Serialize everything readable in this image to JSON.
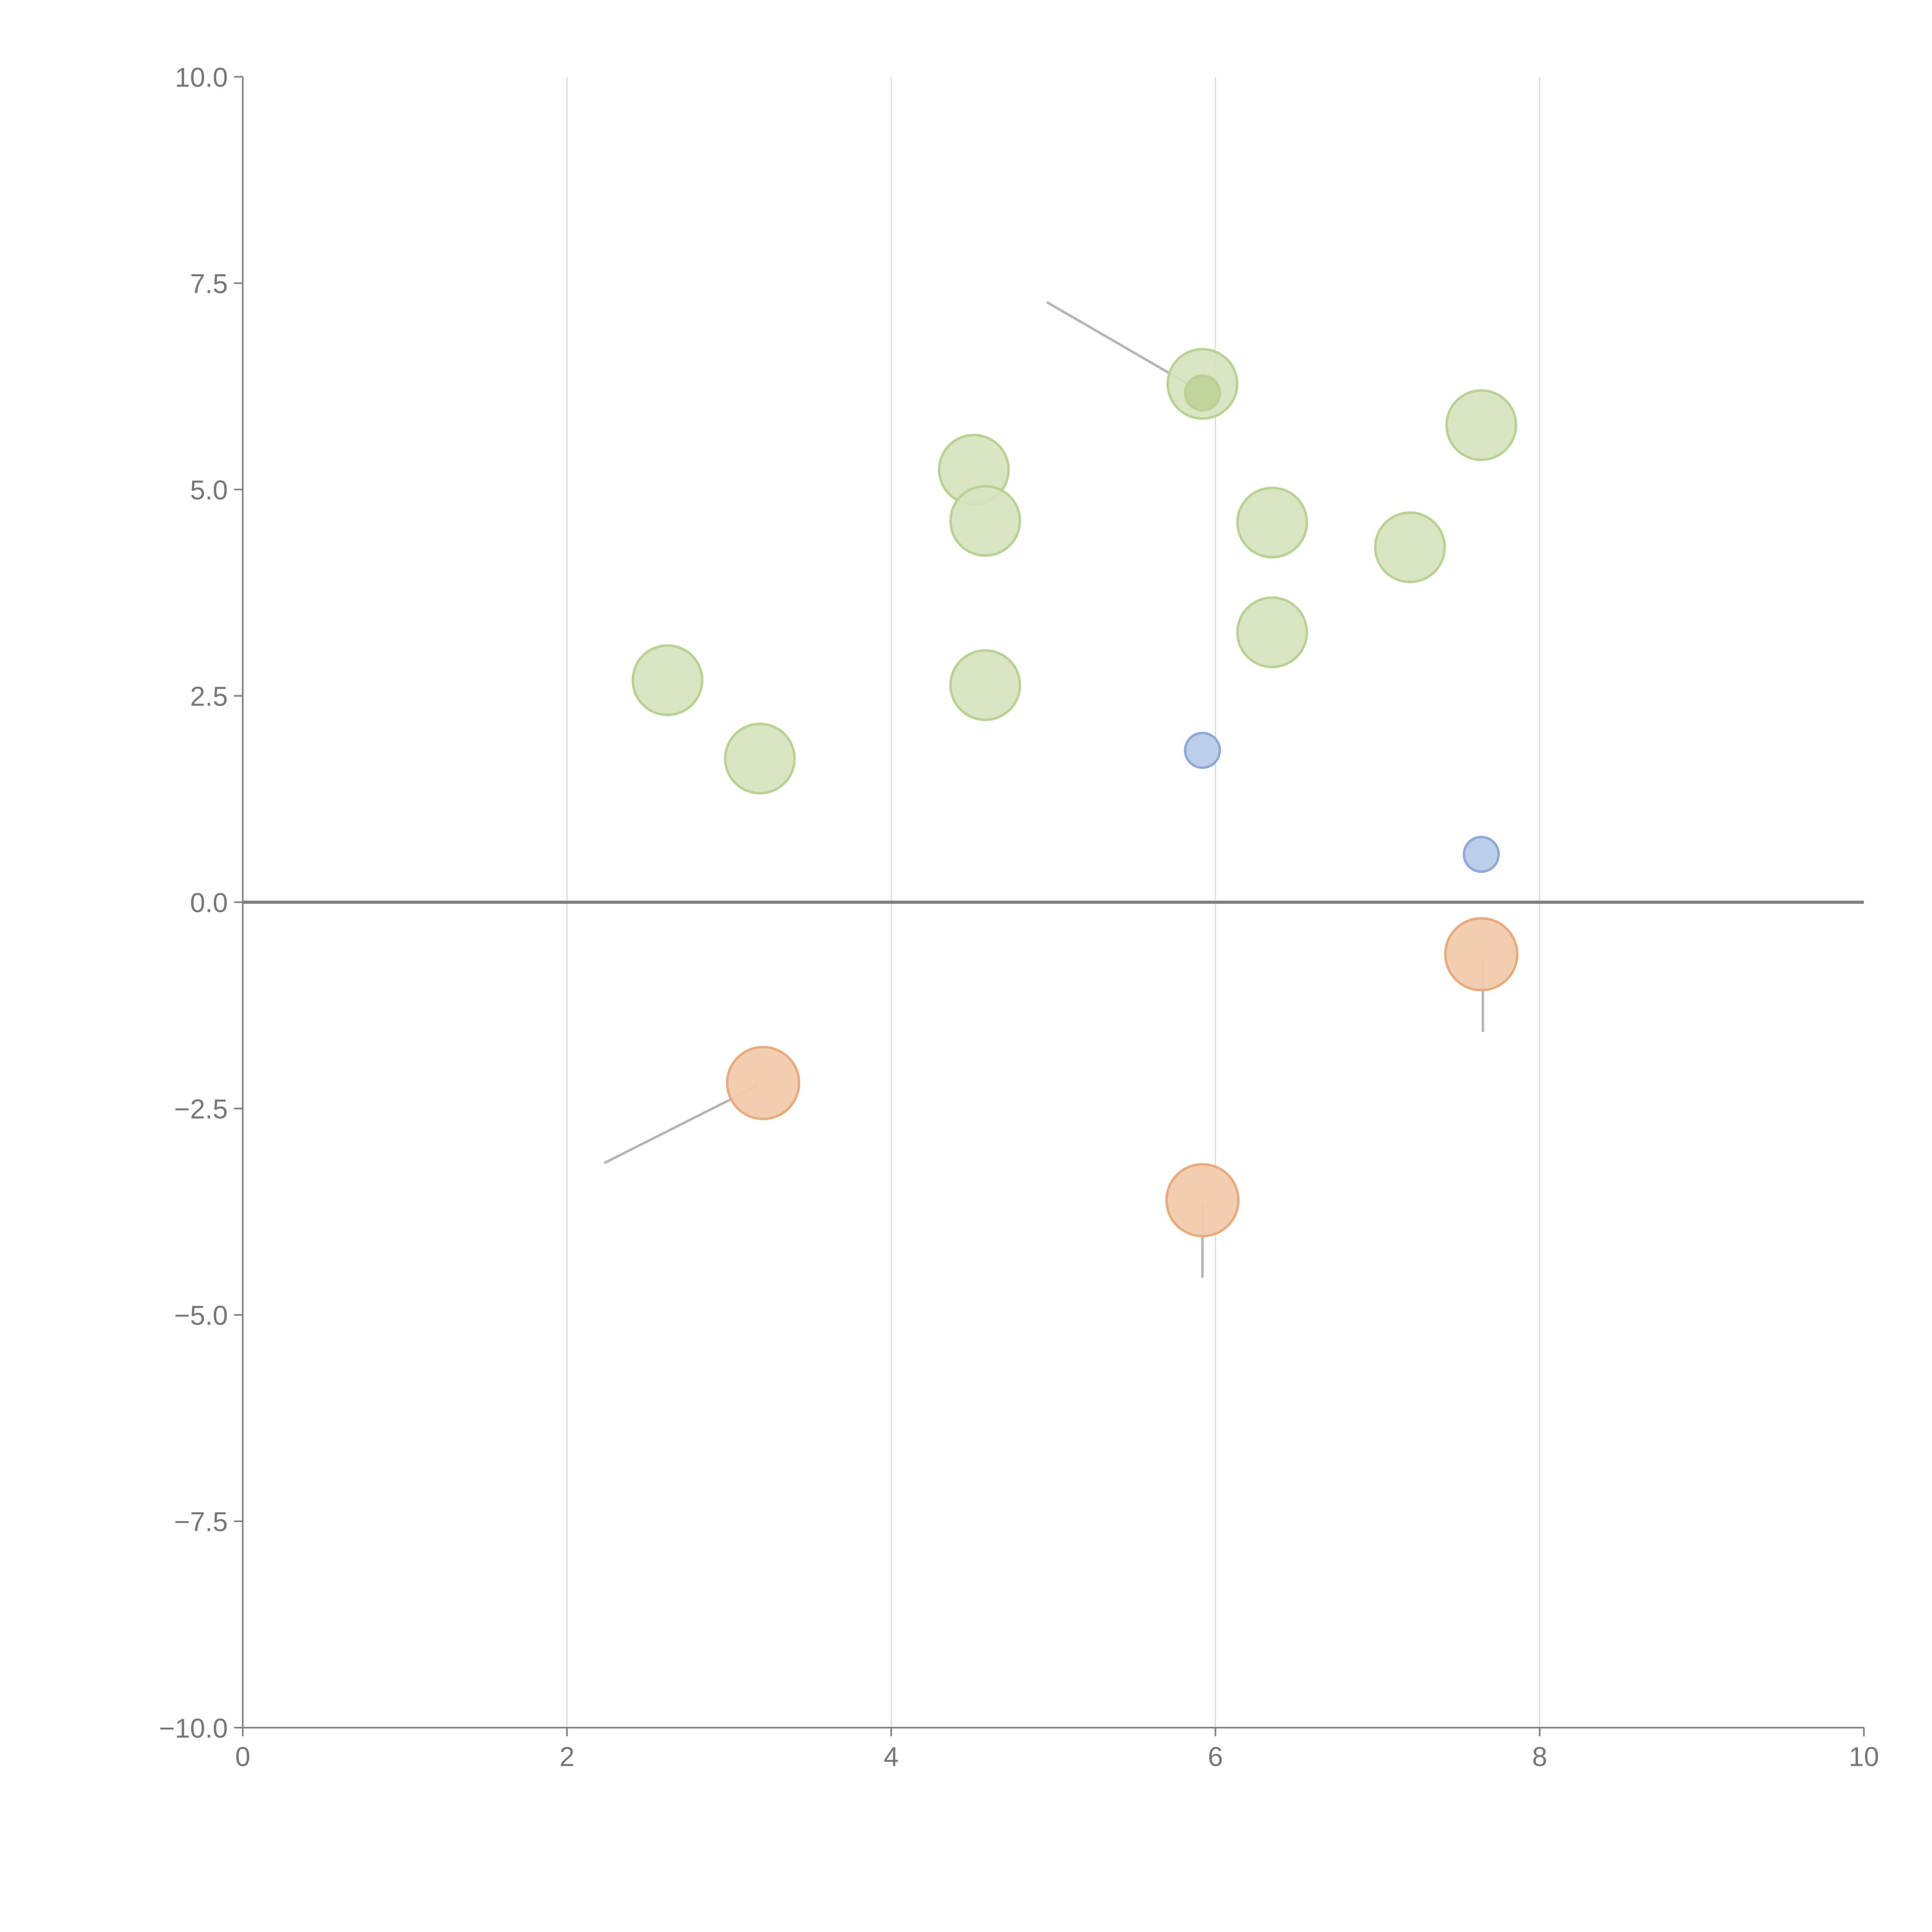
{
  "chart_data": {
    "type": "scatter",
    "title": "",
    "xlabel": "",
    "ylabel": "",
    "xlim": [
      0,
      10
    ],
    "ylim": [
      -10,
      10
    ],
    "x_ticks": [
      "0",
      "2",
      "4",
      "6",
      "8",
      "10"
    ],
    "x_tick_values": [
      0,
      2,
      4,
      6,
      8,
      10
    ],
    "y_ticks": [
      "10.0",
      "7.5",
      "5.0",
      "2.5",
      "0.0",
      "−2.5",
      "−5.0",
      "−7.5",
      "−10.0"
    ],
    "y_tick_values": [
      10,
      7.5,
      5,
      2.5,
      0,
      -2.5,
      -5,
      -7.5,
      -10
    ],
    "grid": "vertical",
    "colors": {
      "green_fill": "#d6e3bd",
      "green_stroke": "#b9d192",
      "blue_fill": "#b9cbe7",
      "blue_stroke": "#8eaad8",
      "orange_fill": "#f1cbae",
      "orange_stroke": "#e9ab7b",
      "axis": "#808080",
      "grid": "#dddddd",
      "leader": "#b5b5b5"
    },
    "series": [
      {
        "name": "green",
        "size": "large",
        "points": [
          [
            5.92,
            6.28
          ],
          [
            4.51,
            5.24
          ],
          [
            4.58,
            4.62
          ],
          [
            6.35,
            4.6
          ],
          [
            7.2,
            4.3
          ],
          [
            7.64,
            5.78
          ],
          [
            6.35,
            3.27
          ],
          [
            4.58,
            2.63
          ],
          [
            2.62,
            2.69
          ],
          [
            3.19,
            1.74
          ]
        ]
      },
      {
        "name": "green-small",
        "size": "small",
        "points": [
          [
            5.92,
            6.17
          ]
        ]
      },
      {
        "name": "blue",
        "size": "small",
        "points": [
          [
            5.92,
            1.84
          ],
          [
            7.64,
            0.58
          ]
        ]
      },
      {
        "name": "orange",
        "size": "large",
        "points": [
          [
            7.64,
            -0.63
          ],
          [
            3.21,
            -2.19
          ],
          [
            5.92,
            -3.61
          ]
        ]
      }
    ],
    "leader_lines": [
      [
        [
          4.96,
          7.27
        ],
        [
          5.9,
          6.2
        ]
      ],
      [
        [
          3.18,
          -2.22
        ],
        [
          2.23,
          -3.16
        ]
      ],
      [
        [
          5.92,
          -3.65
        ],
        [
          5.92,
          -4.55
        ]
      ],
      [
        [
          7.65,
          -0.68
        ],
        [
          7.65,
          -1.57
        ]
      ]
    ]
  }
}
